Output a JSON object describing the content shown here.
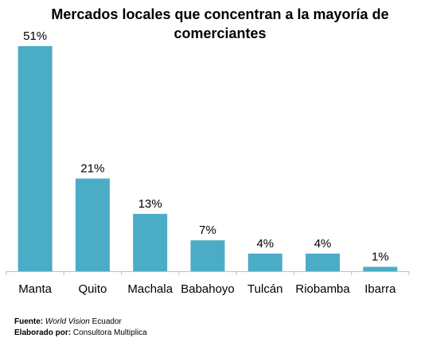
{
  "chart_data": {
    "type": "bar",
    "title_line1": "Mercados locales que concentran a la mayoría de",
    "title_line2": "comerciantes",
    "categories": [
      "Manta",
      "Quito",
      "Machala",
      "Babahoyo",
      "Tulcán",
      "Riobamba",
      "Ibarra"
    ],
    "values": [
      51,
      21,
      13,
      7,
      4,
      4,
      1
    ],
    "value_labels": [
      "51%",
      "21%",
      "13%",
      "7%",
      "4%",
      "4%",
      "1%"
    ],
    "xlabel": "",
    "ylabel": "",
    "ylim": [
      0,
      51
    ],
    "grid": false,
    "bar_color": "#4BACC6"
  },
  "footer": {
    "source_label": "Fuente:",
    "source_italic": "World Vision",
    "source_text": " Ecuador",
    "prepared_label": "Elaborado  por:",
    "prepared_text": " Consultora Multiplica"
  }
}
